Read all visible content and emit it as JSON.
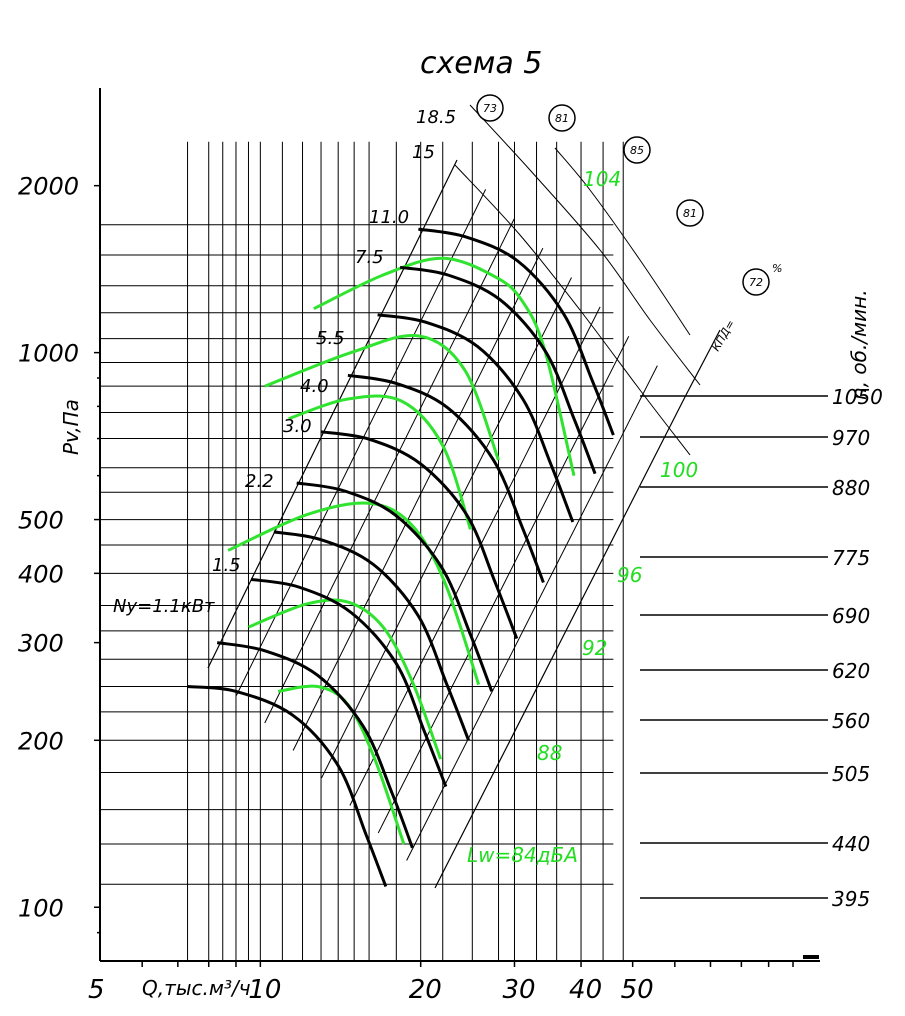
{
  "chart_data": {
    "type": "line",
    "title": "схема 5",
    "xlabel": "Q,тыс.м³/ч",
    "ylabel": "Pv,Па",
    "right_label": "n, об./мин.",
    "x_ticks": [
      "5",
      "10",
      "20",
      "30",
      "40",
      "50"
    ],
    "x_tick_values": [
      5,
      10,
      20,
      30,
      40,
      50
    ],
    "y_ticks": [
      "100",
      "200",
      "300",
      "400",
      "500",
      "1000",
      "2000"
    ],
    "y_tick_values": [
      100,
      200,
      300,
      400,
      500,
      1000,
      2000
    ],
    "xlim": [
      5,
      100
    ],
    "ylim": [
      80,
      3000
    ],
    "x_scale": "log",
    "y_scale": "log",
    "speed_labels": [
      "1050",
      "970",
      "880",
      "775",
      "690",
      "620",
      "560",
      "505",
      "440",
      "395"
    ],
    "speed_curves": [
      {
        "n": 395,
        "x": [
          17.2,
          15.8,
          14.0,
          11.5,
          9.0,
          7.3
        ],
        "y": [
          109,
          135,
          180,
          222,
          245,
          250
        ]
      },
      {
        "n": 440,
        "x": [
          19.3,
          17.7,
          15.6,
          12.8,
          10.2,
          8.3
        ],
        "y": [
          128,
          160,
          212,
          262,
          290,
          300
        ]
      },
      {
        "n": 505,
        "x": [
          22.3,
          20.3,
          18.0,
          14.8,
          11.8,
          9.6
        ],
        "y": [
          165,
          208,
          275,
          340,
          378,
          390
        ]
      },
      {
        "n": 560,
        "x": [
          24.6,
          22.4,
          19.8,
          16.3,
          13.0,
          10.6
        ],
        "y": [
          200,
          252,
          335,
          415,
          460,
          475
        ]
      },
      {
        "n": 620,
        "x": [
          27.2,
          24.8,
          21.9,
          18.0,
          14.4,
          11.7
        ],
        "y": [
          245,
          310,
          410,
          508,
          563,
          582
        ]
      },
      {
        "n": 690,
        "x": [
          30.3,
          27.6,
          24.4,
          20.0,
          16.0,
          13.0
        ],
        "y": [
          305,
          385,
          510,
          630,
          698,
          720
        ]
      },
      {
        "n": 775,
        "x": [
          34.0,
          31.0,
          27.4,
          22.5,
          18.0,
          14.6
        ],
        "y": [
          385,
          485,
          640,
          795,
          880,
          910
        ]
      },
      {
        "n": 880,
        "x": [
          38.6,
          35.2,
          31.1,
          25.6,
          20.4,
          16.6
        ],
        "y": [
          495,
          625,
          825,
          1025,
          1135,
          1170
        ]
      },
      {
        "n": 970,
        "x": [
          42.5,
          38.8,
          34.3,
          28.2,
          22.5,
          18.3
        ],
        "y": [
          605,
          760,
          1005,
          1245,
          1380,
          1425
        ]
      },
      {
        "n": 1050,
        "x": [
          46.0,
          42.0,
          37.1,
          30.5,
          24.4,
          19.8
        ],
        "y": [
          710,
          890,
          1175,
          1460,
          1615,
          1670
        ]
      }
    ],
    "power_labels": [
      "Ny=1.1кВт",
      "1.5",
      "2.2",
      "3.0",
      "4.0",
      "5.5",
      "7.5",
      "11.0",
      "15",
      "18.5"
    ],
    "efficiency_labels": [
      "73",
      "81",
      "85",
      "81",
      "72"
    ],
    "efficiency_caption": "КПД=",
    "efficiency_unit": "%",
    "noise_levels": [
      {
        "label": "Lw=84дБА",
        "x": [
          10.8,
          12.8,
          14.6,
          16.4,
          18.6
        ],
        "y": [
          245,
          250,
          232,
          185,
          130
        ]
      },
      {
        "label": "88",
        "x": [
          9.5,
          12.2,
          14.6,
          17.0,
          19.3,
          21.8
        ],
        "y": [
          320,
          352,
          355,
          320,
          255,
          185
        ]
      },
      {
        "label": "92",
        "x": [
          8.7,
          12.2,
          16.0,
          19.2,
          22.2,
          25.7
        ],
        "y": [
          440,
          510,
          535,
          490,
          385,
          252
        ]
      },
      {
        "label": "96",
        "x": [
          11.3,
          14.6,
          18.4,
          22.0,
          24.8
        ],
        "y": [
          760,
          825,
          818,
          680,
          480
        ]
      },
      {
        "label": "100",
        "x": [
          10.2,
          14.8,
          19.8,
          24.2,
          28.0
        ],
        "y": [
          870,
          1000,
          1072,
          930,
          640
        ]
      },
      {
        "label": "104",
        "x": [
          12.6,
          17.0,
          22.0,
          27.6,
          31.0,
          34.2,
          38.8
        ],
        "y": [
          1200,
          1380,
          1480,
          1370,
          1240,
          1010,
          600
        ]
      }
    ]
  }
}
